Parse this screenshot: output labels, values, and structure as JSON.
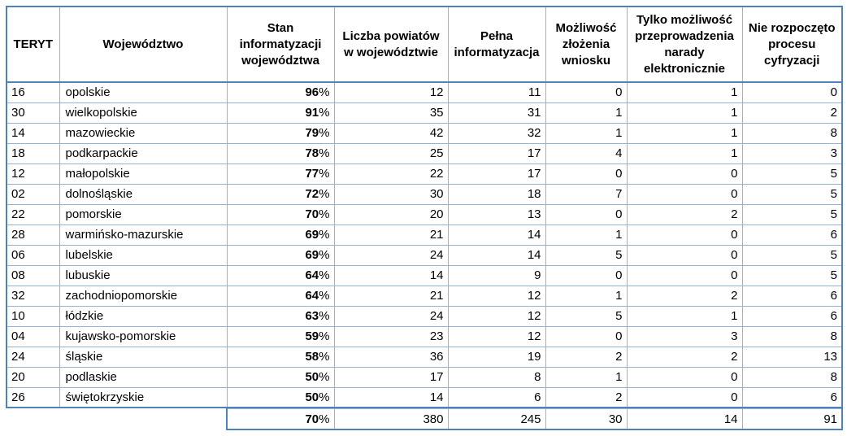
{
  "chart_data": {
    "type": "table",
    "columns": [
      {
        "key": "teryt",
        "label": "TERYT"
      },
      {
        "key": "wojewodztwo",
        "label": "Województwo"
      },
      {
        "key": "stan-informatyzacji",
        "label": "Stan informatyzacji województwa"
      },
      {
        "key": "liczba-powiatow",
        "label": "Liczba powiatów w województwie"
      },
      {
        "key": "pelna-informatyzacja",
        "label": "Pełna informatyzacja"
      },
      {
        "key": "mozliwosc-zlozenia-wniosku",
        "label": "Możliwość złożenia wniosku"
      },
      {
        "key": "tylko-narada-elektroniczna",
        "label": "Tylko możliwość przeprowadzenia narady elektronicznie"
      },
      {
        "key": "nie-rozpoczeto-cyfryzacji",
        "label": "Nie rozpoczęto procesu cyfryzacji"
      }
    ],
    "rows": [
      [
        "16",
        "opolskie",
        "96%",
        12,
        11,
        0,
        1,
        0
      ],
      [
        "30",
        "wielkopolskie",
        "91%",
        35,
        31,
        1,
        1,
        2
      ],
      [
        "14",
        "mazowieckie",
        "79%",
        42,
        32,
        1,
        1,
        8
      ],
      [
        "18",
        "podkarpackie",
        "78%",
        25,
        17,
        4,
        1,
        3
      ],
      [
        "12",
        "małopolskie",
        "77%",
        22,
        17,
        0,
        0,
        5
      ],
      [
        "02",
        "dolnośląskie",
        "72%",
        30,
        18,
        7,
        0,
        5
      ],
      [
        "22",
        "pomorskie",
        "70%",
        20,
        13,
        0,
        2,
        5
      ],
      [
        "28",
        "warmińsko-mazurskie",
        "69%",
        21,
        14,
        1,
        0,
        6
      ],
      [
        "06",
        "lubelskie",
        "69%",
        24,
        14,
        5,
        0,
        5
      ],
      [
        "08",
        "lubuskie",
        "64%",
        14,
        9,
        0,
        0,
        5
      ],
      [
        "32",
        "zachodniopomorskie",
        "64%",
        21,
        12,
        1,
        2,
        6
      ],
      [
        "10",
        "łódzkie",
        "63%",
        24,
        12,
        5,
        1,
        6
      ],
      [
        "04",
        "kujawsko-pomorskie",
        "59%",
        23,
        12,
        0,
        3,
        8
      ],
      [
        "24",
        "śląskie",
        "58%",
        36,
        19,
        2,
        2,
        13
      ],
      [
        "20",
        "podlaskie",
        "50%",
        17,
        8,
        1,
        0,
        8
      ],
      [
        "26",
        "świętokrzyskie",
        "50%",
        14,
        6,
        2,
        0,
        6
      ]
    ],
    "totals": [
      "70%",
      380,
      245,
      30,
      14,
      91
    ]
  },
  "colors": {
    "border_thick": "#4f81bd",
    "border_thin": "#95b3d7",
    "text": "#000000",
    "background": "#ffffff"
  }
}
